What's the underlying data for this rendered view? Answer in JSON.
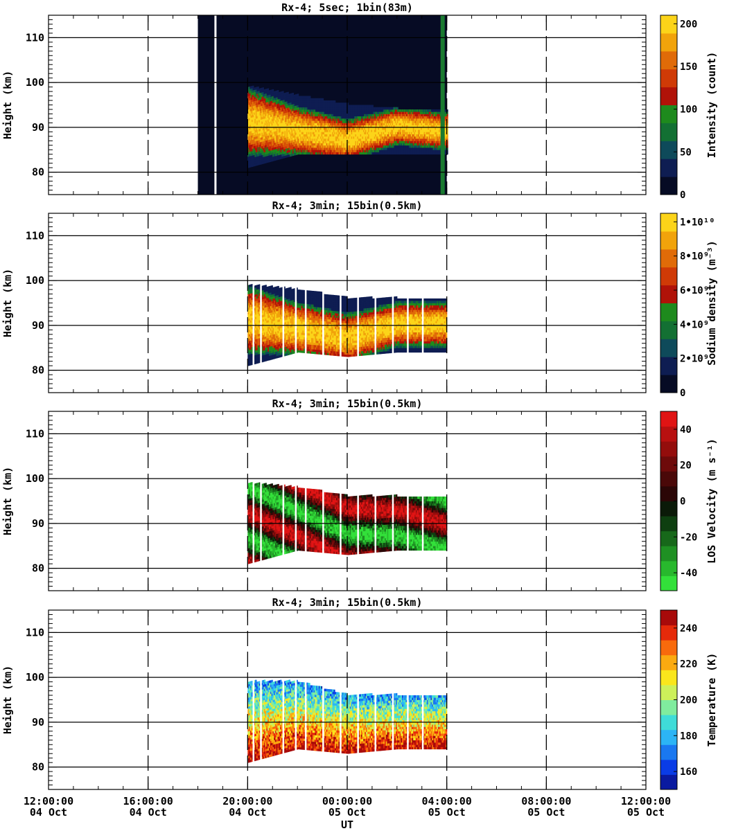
{
  "figure": {
    "xaxis_title": "UT",
    "x_ticks": [
      {
        "time": "12:00:00",
        "date": "04 Oct"
      },
      {
        "time": "16:00:00",
        "date": "04 Oct"
      },
      {
        "time": "20:00:00",
        "date": "04 Oct"
      },
      {
        "time": "00:00:00",
        "date": "05 Oct"
      },
      {
        "time": "04:00:00",
        "date": "05 Oct"
      },
      {
        "time": "08:00:00",
        "date": "05 Oct"
      },
      {
        "time": "12:00:00",
        "date": "05 Oct"
      }
    ]
  },
  "chart_data": [
    {
      "type": "heatmap",
      "title": "Rx-4;  5sec; 1bin(83m)",
      "ylabel": "Height (km)",
      "xlabel": "UT",
      "x_range": [
        "04 Oct 12:00:00",
        "05 Oct 12:00:00"
      ],
      "ylim": [
        75,
        115
      ],
      "y_ticks": [
        80,
        90,
        100,
        110
      ],
      "colorbar": {
        "label": "Intensity (count)",
        "range": [
          0,
          210
        ],
        "tick_values": [
          0,
          50,
          100,
          150,
          200
        ],
        "tick_labels": [
          "0",
          "50",
          "100",
          "150",
          "200"
        ],
        "colors": [
          "#060b24",
          "#0e1d52",
          "#0e4a5a",
          "#137033",
          "#1e8a1d",
          "#b01208",
          "#cf3a06",
          "#e06b08",
          "#f1a30b",
          "#fcd419"
        ]
      },
      "data_coverage": [
        "04 Oct 18:00",
        "05 Oct 04:00"
      ],
      "layer_summary": [
        {
          "time": "04 Oct 20:00",
          "top_km": 99,
          "bottom_km": 81,
          "peak_km": 91
        },
        {
          "time": "04 Oct 22:00",
          "top_km": 97,
          "bottom_km": 84,
          "peak_km": 89
        },
        {
          "time": "05 Oct 00:00",
          "top_km": 95,
          "bottom_km": 84,
          "peak_km": 87
        },
        {
          "time": "05 Oct 02:00",
          "top_km": 94,
          "bottom_km": 84,
          "peak_km": 90
        },
        {
          "time": "05 Oct 03:50",
          "top_km": 94,
          "bottom_km": 84,
          "peak_km": 89
        }
      ]
    },
    {
      "type": "heatmap",
      "title": "Rx-4; 3min; 15bin(0.5km)",
      "ylabel": "Height (km)",
      "xlabel": "UT",
      "x_range": [
        "04 Oct 12:00:00",
        "05 Oct 12:00:00"
      ],
      "ylim": [
        75,
        115
      ],
      "y_ticks": [
        80,
        90,
        100,
        110
      ],
      "colorbar": {
        "label": "Sodium density (m⁻³)",
        "range": [
          0,
          10500000000.0
        ],
        "tick_values": [
          0,
          2000000000.0,
          4000000000.0,
          6000000000.0,
          8000000000.0,
          10000000000.0
        ],
        "tick_labels": [
          "0",
          "2•10⁹",
          "4•10⁹",
          "6•10⁹",
          "8•10⁹",
          "1•10¹⁰"
        ],
        "colors": [
          "#060b24",
          "#0e1d52",
          "#0e4a5a",
          "#137033",
          "#1e8a1d",
          "#b01208",
          "#cf3a06",
          "#e06b08",
          "#f1a30b",
          "#fcd419"
        ]
      },
      "data_coverage": [
        "04 Oct 20:00",
        "05 Oct 04:00"
      ],
      "layer_summary": [
        {
          "time": "04 Oct 20:00",
          "top_km": 99,
          "bottom_km": 81,
          "peak_km": 91
        },
        {
          "time": "04 Oct 22:00",
          "top_km": 98,
          "bottom_km": 84,
          "peak_km": 89
        },
        {
          "time": "05 Oct 00:00",
          "top_km": 96,
          "bottom_km": 83,
          "peak_km": 87
        },
        {
          "time": "05 Oct 02:00",
          "top_km": 96,
          "bottom_km": 84,
          "peak_km": 90
        },
        {
          "time": "05 Oct 03:50",
          "top_km": 96,
          "bottom_km": 84,
          "peak_km": 90
        }
      ]
    },
    {
      "type": "heatmap",
      "title": "Rx-4; 3min; 15bin(0.5km)",
      "ylabel": "Height (km)",
      "xlabel": "UT",
      "x_range": [
        "04 Oct 12:00:00",
        "05 Oct 12:00:00"
      ],
      "ylim": [
        75,
        115
      ],
      "y_ticks": [
        80,
        90,
        100,
        110
      ],
      "colorbar": {
        "label": "LOS Velocity (m s⁻¹)",
        "range": [
          -50,
          50
        ],
        "tick_values": [
          -40,
          -20,
          0,
          20,
          40
        ],
        "tick_labels": [
          "-40",
          "-20",
          "0",
          "20",
          "40"
        ],
        "colors": [
          "#33e03a",
          "#28b82d",
          "#1f9023",
          "#17681a",
          "#0e3f10",
          "#0b1a08",
          "#2b0606",
          "#4a0808",
          "#6e0a0a",
          "#940d0c",
          "#b81010",
          "#e01414"
        ]
      },
      "data_coverage": [
        "04 Oct 20:00",
        "05 Oct 04:00"
      ],
      "layer_summary": [
        {
          "time": "04 Oct 20:00",
          "top_km": 99,
          "bottom_km": 81,
          "peak_km": 91
        },
        {
          "time": "04 Oct 22:00",
          "top_km": 98,
          "bottom_km": 84,
          "peak_km": 89
        },
        {
          "time": "05 Oct 00:00",
          "top_km": 96,
          "bottom_km": 83,
          "peak_km": 87
        },
        {
          "time": "05 Oct 02:00",
          "top_km": 96,
          "bottom_km": 84,
          "peak_km": 90
        },
        {
          "time": "05 Oct 03:50",
          "top_km": 96,
          "bottom_km": 84,
          "peak_km": 90
        }
      ]
    },
    {
      "type": "heatmap",
      "title": "Rx-4; 3min; 15bin(0.5km)",
      "ylabel": "Height (km)",
      "xlabel": "UT",
      "x_range": [
        "04 Oct 12:00:00",
        "05 Oct 12:00:00"
      ],
      "ylim": [
        75,
        115
      ],
      "y_ticks": [
        80,
        90,
        100,
        110
      ],
      "colorbar": {
        "label": "Temperature (K)",
        "range": [
          150,
          250
        ],
        "tick_values": [
          160,
          180,
          200,
          220,
          240
        ],
        "tick_labels": [
          "160",
          "180",
          "200",
          "220",
          "240"
        ],
        "colors": [
          "#0a1aa0",
          "#0a3ce6",
          "#1a78f0",
          "#2cb4f5",
          "#3fdcd8",
          "#80ec9e",
          "#cdf05a",
          "#fae61c",
          "#fbaa10",
          "#f86a0c",
          "#e52a0a",
          "#a80a0a"
        ]
      },
      "data_coverage": [
        "04 Oct 20:00",
        "05 Oct 04:00"
      ],
      "layer_summary": [
        {
          "time": "04 Oct 20:00",
          "top_km": 99,
          "bottom_km": 81,
          "peak_km": 88
        },
        {
          "time": "04 Oct 22:00",
          "top_km": 99,
          "bottom_km": 84,
          "peak_km": 88
        },
        {
          "time": "05 Oct 00:00",
          "top_km": 96,
          "bottom_km": 83,
          "peak_km": 87
        },
        {
          "time": "05 Oct 02:00",
          "top_km": 96,
          "bottom_km": 84,
          "peak_km": 88
        },
        {
          "time": "05 Oct 03:50",
          "top_km": 96,
          "bottom_km": 84,
          "peak_km": 88
        }
      ]
    }
  ]
}
